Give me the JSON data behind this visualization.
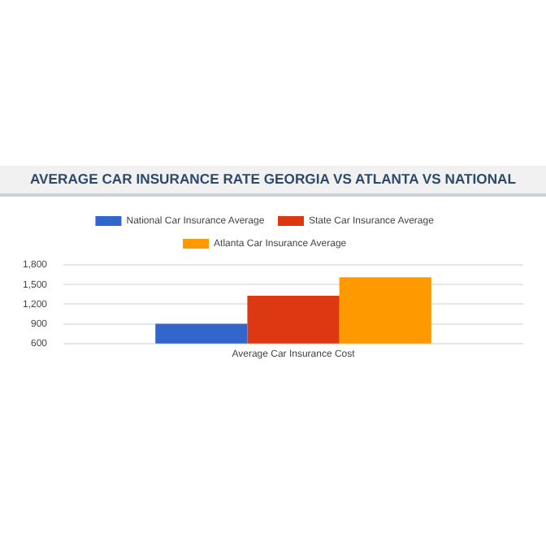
{
  "chart_data": {
    "type": "bar",
    "title": "AVERAGE CAR INSURANCE RATE GEORGIA VS ATLANTA VS NATIONAL",
    "categories": [
      "Average Car Insurance Cost"
    ],
    "series": [
      {
        "name": "National Car Insurance Average",
        "color": "#3366cc",
        "values": [
          900
        ]
      },
      {
        "name": "State Car Insurance Average",
        "color": "#dc3912",
        "values": [
          1330
        ]
      },
      {
        "name": "Atlanta Car Insurance Average",
        "color": "#ff9900",
        "values": [
          1610
        ]
      }
    ],
    "ylim": [
      600,
      1800
    ],
    "yticks": [
      {
        "value": 600,
        "label": "600"
      },
      {
        "value": 900,
        "label": "900"
      },
      {
        "value": 1200,
        "label": "1,200"
      },
      {
        "value": 1500,
        "label": "1,500"
      },
      {
        "value": 1800,
        "label": "1,800"
      }
    ],
    "grid": "y",
    "legend": "top"
  }
}
